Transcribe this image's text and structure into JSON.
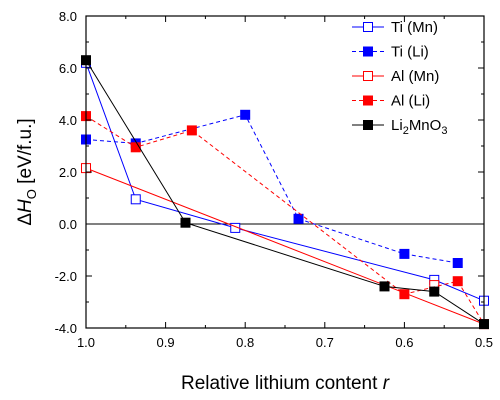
{
  "chart_data": {
    "type": "line",
    "xlabel": {
      "main": "Relative lithium content ",
      "var": "r"
    },
    "ylabel": {
      "delta": "Δ",
      "var": "H",
      "sub": "O",
      "unit": " [eV/f.u.]"
    },
    "xlim": [
      1.0,
      0.5
    ],
    "ylim": [
      -4.0,
      8.0
    ],
    "x_ticks": [
      1.0,
      0.9,
      0.8,
      0.7,
      0.6,
      0.5
    ],
    "x_tick_labels": [
      "1.0",
      "0.9",
      "0.8",
      "0.7",
      "0.6",
      "0.5"
    ],
    "y_ticks": [
      -4,
      -2,
      0,
      2,
      4,
      6,
      8
    ],
    "y_tick_labels": [
      "-4.0",
      "-2.0",
      "0.0",
      "2.0",
      "4.0",
      "6.0",
      "8.0"
    ],
    "zero_line": true,
    "grid": false,
    "legend_position": "top-right",
    "series": [
      {
        "name": "Ti (Mn)",
        "legend": {
          "main": "Ti (Mn)"
        },
        "color": "#0000ff",
        "dashed": false,
        "filled": false,
        "points": [
          [
            1.0,
            6.2
          ],
          [
            0.9375,
            0.95
          ],
          [
            0.8125,
            -0.15
          ],
          [
            0.5625,
            -2.15
          ],
          [
            0.5,
            -2.95
          ]
        ],
        "line": [
          [
            1.0,
            6.2
          ],
          [
            0.9375,
            0.95
          ],
          [
            0.8125,
            -0.15
          ],
          [
            0.5625,
            -2.15
          ],
          [
            0.5,
            -2.95
          ]
        ]
      },
      {
        "name": "Ti (Li)",
        "legend": {
          "main": "Ti (Li)"
        },
        "color": "#0000ff",
        "dashed": true,
        "filled": true,
        "points": [
          [
            1.0,
            3.25
          ],
          [
            0.9375,
            3.1
          ],
          [
            0.8,
            4.2
          ],
          [
            0.733,
            0.2
          ],
          [
            0.6,
            -1.15
          ],
          [
            0.533,
            -1.5
          ]
        ],
        "line": [
          [
            1.0,
            3.25
          ],
          [
            0.9375,
            3.1
          ],
          [
            0.8,
            4.2
          ],
          [
            0.733,
            0.2
          ],
          [
            0.6,
            -1.15
          ],
          [
            0.533,
            -1.5
          ]
        ]
      },
      {
        "name": "Al (Mn)",
        "legend": {
          "main": "Al (Mn)"
        },
        "color": "#ff0000",
        "dashed": false,
        "filled": false,
        "points": [
          [
            1.0,
            2.15
          ],
          [
            0.5625,
            -2.35
          ]
        ],
        "line": [
          [
            1.0,
            2.15
          ],
          [
            0.5,
            -3.85
          ]
        ]
      },
      {
        "name": "Al (Li)",
        "legend": {
          "main": "Al (Li)"
        },
        "color": "#ff0000",
        "dashed": true,
        "filled": true,
        "points": [
          [
            1.0,
            4.15
          ],
          [
            0.9375,
            2.95
          ],
          [
            0.867,
            3.6
          ],
          [
            0.6,
            -2.7
          ],
          [
            0.533,
            -2.2
          ],
          [
            0.5,
            -3.85
          ]
        ],
        "line": [
          [
            1.0,
            4.15
          ],
          [
            0.9375,
            2.95
          ],
          [
            0.867,
            3.6
          ],
          [
            0.6,
            -2.7
          ],
          [
            0.533,
            -2.2
          ],
          [
            0.5,
            -3.85
          ]
        ]
      },
      {
        "name": "Li2MnO3",
        "legend": {
          "main": "Li",
          "parts": [
            [
              "2",
              "sub"
            ],
            [
              "MnO",
              "base"
            ],
            [
              "3",
              "sub"
            ]
          ]
        },
        "color": "#000000",
        "dashed": false,
        "filled": true,
        "points": [
          [
            1.0,
            6.3
          ],
          [
            0.875,
            0.05
          ],
          [
            0.625,
            -2.4
          ],
          [
            0.5625,
            -2.6
          ],
          [
            0.5,
            -3.85
          ]
        ],
        "line": [
          [
            1.0,
            6.3
          ],
          [
            0.875,
            0.05
          ],
          [
            0.625,
            -2.4
          ],
          [
            0.5625,
            -2.6
          ],
          [
            0.5,
            -3.85
          ]
        ]
      }
    ]
  }
}
